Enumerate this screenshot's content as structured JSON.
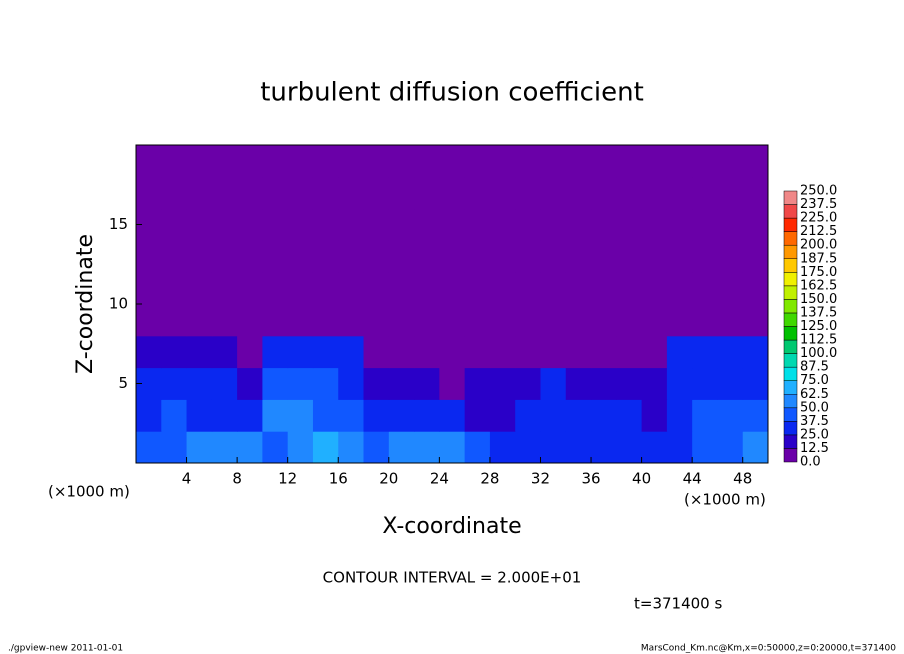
{
  "chart_data": {
    "type": "heatmap",
    "title": "turbulent diffusion coefficient",
    "xlabel": "X-coordinate",
    "ylabel": "Z-coordinate",
    "x_unit": "(×1000 m)",
    "y_unit": "(×1000 m)",
    "note": "CONTOUR INTERVAL = 2.000E+01",
    "time_label": "t=371400 s",
    "footer_left": "./gpview-new   2011-01-01",
    "footer_right": "MarsCond_Km.nc@Km,x=0:50000,z=0:20000,t=371400",
    "xlim": [
      0,
      50
    ],
    "ylim": [
      0,
      20
    ],
    "xticks": [
      4,
      8,
      12,
      16,
      20,
      24,
      28,
      32,
      36,
      40,
      44,
      48
    ],
    "yticks": [
      5,
      10,
      15
    ],
    "x": [
      1,
      3,
      5,
      7,
      9,
      11,
      13,
      15,
      17,
      19,
      21,
      23,
      25,
      27,
      29,
      31,
      33,
      35,
      37,
      39,
      41,
      43,
      45,
      47,
      49
    ],
    "y": [
      1,
      3,
      5,
      7,
      9,
      11,
      13,
      15,
      17,
      19
    ],
    "z": [
      [
        40,
        45,
        55,
        60,
        55,
        45,
        50,
        65,
        60,
        45,
        50,
        60,
        50,
        40,
        35,
        35,
        30,
        35,
        30,
        30,
        30,
        35,
        40,
        45,
        60
      ],
      [
        35,
        40,
        30,
        30,
        35,
        50,
        55,
        45,
        40,
        30,
        30,
        25,
        25,
        20,
        20,
        30,
        35,
        30,
        25,
        25,
        20,
        30,
        40,
        45,
        40
      ],
      [
        30,
        30,
        30,
        25,
        20,
        40,
        40,
        40,
        35,
        15,
        15,
        15,
        10,
        20,
        20,
        20,
        25,
        20,
        20,
        15,
        15,
        30,
        35,
        35,
        35
      ],
      [
        20,
        20,
        20,
        15,
        10,
        30,
        30,
        30,
        25,
        5,
        5,
        5,
        5,
        5,
        5,
        5,
        5,
        5,
        5,
        5,
        10,
        25,
        25,
        25,
        25
      ],
      [
        0,
        0,
        0,
        0,
        0,
        5,
        10,
        10,
        5,
        0,
        0,
        0,
        0,
        0,
        0,
        0,
        0,
        0,
        0,
        0,
        0,
        0,
        5,
        5,
        5
      ],
      [
        0,
        0,
        0,
        0,
        0,
        0,
        0,
        0,
        0,
        0,
        0,
        0,
        0,
        0,
        0,
        0,
        0,
        0,
        0,
        0,
        0,
        0,
        0,
        0,
        0
      ],
      [
        0,
        0,
        0,
        0,
        0,
        0,
        0,
        0,
        0,
        0,
        0,
        0,
        0,
        0,
        0,
        0,
        0,
        0,
        0,
        0,
        0,
        0,
        0,
        0,
        0
      ],
      [
        0,
        0,
        0,
        0,
        0,
        0,
        0,
        0,
        0,
        0,
        0,
        0,
        0,
        0,
        0,
        0,
        0,
        0,
        0,
        0,
        0,
        0,
        0,
        0,
        0
      ],
      [
        0,
        0,
        0,
        0,
        0,
        0,
        0,
        0,
        0,
        0,
        0,
        0,
        0,
        0,
        0,
        0,
        0,
        0,
        0,
        0,
        0,
        0,
        0,
        0,
        0
      ],
      [
        0,
        0,
        0,
        0,
        0,
        0,
        0,
        0,
        0,
        0,
        0,
        0,
        0,
        0,
        0,
        0,
        0,
        0,
        0,
        0,
        0,
        0,
        0,
        0,
        0
      ]
    ],
    "levels": [
      {
        "value": 0,
        "label": "0.0"
      },
      {
        "value": 12.5,
        "label": "12.5"
      },
      {
        "value": 25,
        "label": "25.0"
      },
      {
        "value": 37.5,
        "label": "37.5"
      },
      {
        "value": 50,
        "label": "50.0"
      },
      {
        "value": 62.5,
        "label": "62.5"
      },
      {
        "value": 75,
        "label": "75.0"
      },
      {
        "value": 87.5,
        "label": "87.5"
      },
      {
        "value": 100,
        "label": "100.0"
      },
      {
        "value": 112.5,
        "label": "112.5"
      },
      {
        "value": 125,
        "label": "125.0"
      },
      {
        "value": 137.5,
        "label": "137.5"
      },
      {
        "value": 150,
        "label": "150.0"
      },
      {
        "value": 162.5,
        "label": "162.5"
      },
      {
        "value": 175,
        "label": "175.0"
      },
      {
        "value": 187.5,
        "label": "187.5"
      },
      {
        "value": 200,
        "label": "200.0"
      },
      {
        "value": 212.5,
        "label": "212.5"
      },
      {
        "value": 225,
        "label": "225.0"
      },
      {
        "value": 237.5,
        "label": "237.5"
      },
      {
        "value": 250,
        "label": "250.0"
      }
    ],
    "colors": [
      "#6a00a8",
      "#2a00c8",
      "#0a28f0",
      "#1058ff",
      "#2088ff",
      "#20b0ff",
      "#00e0e8",
      "#00d8b0",
      "#00c870",
      "#00c000",
      "#40d800",
      "#80e800",
      "#c0f000",
      "#f0f000",
      "#ffc800",
      "#ff9800",
      "#ff6800",
      "#ff2800",
      "#f04848",
      "#f08888"
    ]
  }
}
